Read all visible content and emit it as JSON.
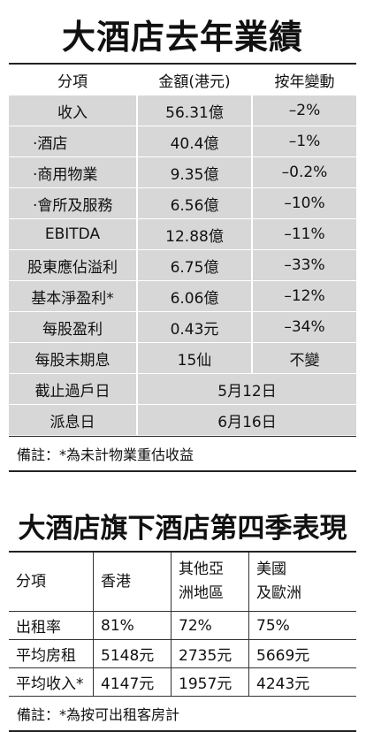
{
  "table1": {
    "title": "大酒店去年業績",
    "header": [
      "分項",
      "金額(港元)",
      "按年變動"
    ],
    "rows": [
      [
        "收入",
        "56.31億",
        "–2%"
      ],
      [
        "‧酒店",
        "40.4億",
        "–1%"
      ],
      [
        "‧商用物業",
        "9.35億",
        "–0.2%"
      ],
      [
        "‧會所及服務",
        "6.56億",
        "–10%"
      ],
      [
        "EBITDA",
        "12.88億",
        "–11%"
      ],
      [
        "股東應佔溢利",
        "6.75億",
        "–33%"
      ],
      [
        "基本淨盈利*",
        "6.06億",
        "–12%"
      ],
      [
        "每股盈利",
        "0.43元",
        "–34%"
      ],
      [
        "每股末期息",
        "15仙",
        "不變"
      ]
    ],
    "span_rows": [
      [
        "截止過戶日",
        "5月12日"
      ],
      [
        "派息日",
        "6月16日"
      ]
    ],
    "note": "備註：*為未計物業重估收益"
  },
  "table2": {
    "title": "大酒店旗下酒店第四季表現",
    "header": [
      "分項",
      "香港",
      "其他亞洲地區",
      "美國及歐洲"
    ],
    "header_lines": {
      "col3": [
        "其他亞",
        "洲地區"
      ],
      "col4": [
        "美國",
        "及歐洲"
      ]
    },
    "rows": [
      [
        "出租率",
        "81%",
        "72%",
        "75%"
      ],
      [
        "平均房租",
        "5148元",
        "2735元",
        "5669元"
      ],
      [
        "平均收入*",
        "4147元",
        "1957元",
        "4243元"
      ]
    ],
    "note": "備註：*為按可出租客房計"
  }
}
